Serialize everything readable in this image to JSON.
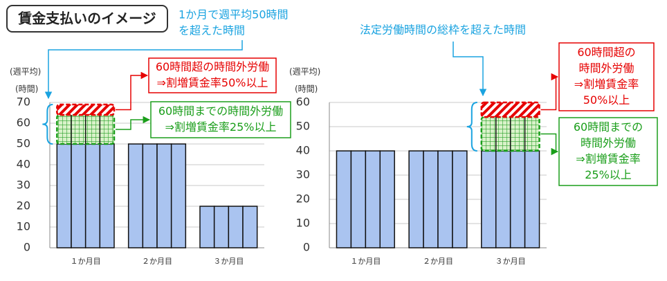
{
  "header": {
    "title": "賃金支払いのイメージ"
  },
  "chart_data": [
    {
      "type": "bar",
      "callout": [
        "1か月で週平均50時間",
        "を超えた時間"
      ],
      "y_label": [
        "(週平均)",
        "(時間)"
      ],
      "categories": [
        "１か月目",
        "２か月目",
        "３か月目"
      ],
      "values": [
        [
          50,
          50,
          50,
          50
        ],
        [
          50,
          50,
          50,
          50
        ],
        [
          20,
          20,
          20,
          20
        ]
      ],
      "color": "#aac4f0",
      "ylim": [
        0,
        70
      ],
      "yticks": [
        0,
        10,
        20,
        30,
        40,
        50,
        60,
        70
      ],
      "grid": true,
      "overtime": [
        {
          "category": 0,
          "from": 50,
          "to": 64,
          "color": "#1a9e1a",
          "label": [
            "60時間までの時間外労働",
            "⇒割増賃金率25%以上"
          ]
        },
        {
          "category": 0,
          "from": 64,
          "to": 69,
          "color": "#e60000",
          "label": [
            "60時間超の時間外労働",
            "⇒割増賃金率50%以上"
          ]
        }
      ]
    },
    {
      "type": "bar",
      "callout": [
        "法定労働時間の総枠を超えた時間"
      ],
      "y_label": [
        "(週平均)",
        "(時間)"
      ],
      "categories": [
        "１か月目",
        "２か月目",
        "３か月目"
      ],
      "values": [
        [
          40,
          40,
          40,
          40
        ],
        [
          40,
          40,
          40,
          40
        ],
        [
          40,
          40,
          40,
          40
        ]
      ],
      "color": "#aac4f0",
      "ylim": [
        0,
        60
      ],
      "yticks": [
        0,
        10,
        20,
        30,
        40,
        50,
        60
      ],
      "grid": true,
      "overtime": [
        {
          "category": 2,
          "from": 40,
          "to": 54,
          "color": "#1a9e1a",
          "label": [
            "60時間までの",
            "時間外労働",
            "⇒割増賃金率",
            "25%以上"
          ]
        },
        {
          "category": 2,
          "from": 54,
          "to": 60,
          "color": "#e60000",
          "label": [
            "60時間超の",
            "時間外労働",
            "⇒割増賃金率",
            "50%以上"
          ]
        }
      ]
    }
  ]
}
